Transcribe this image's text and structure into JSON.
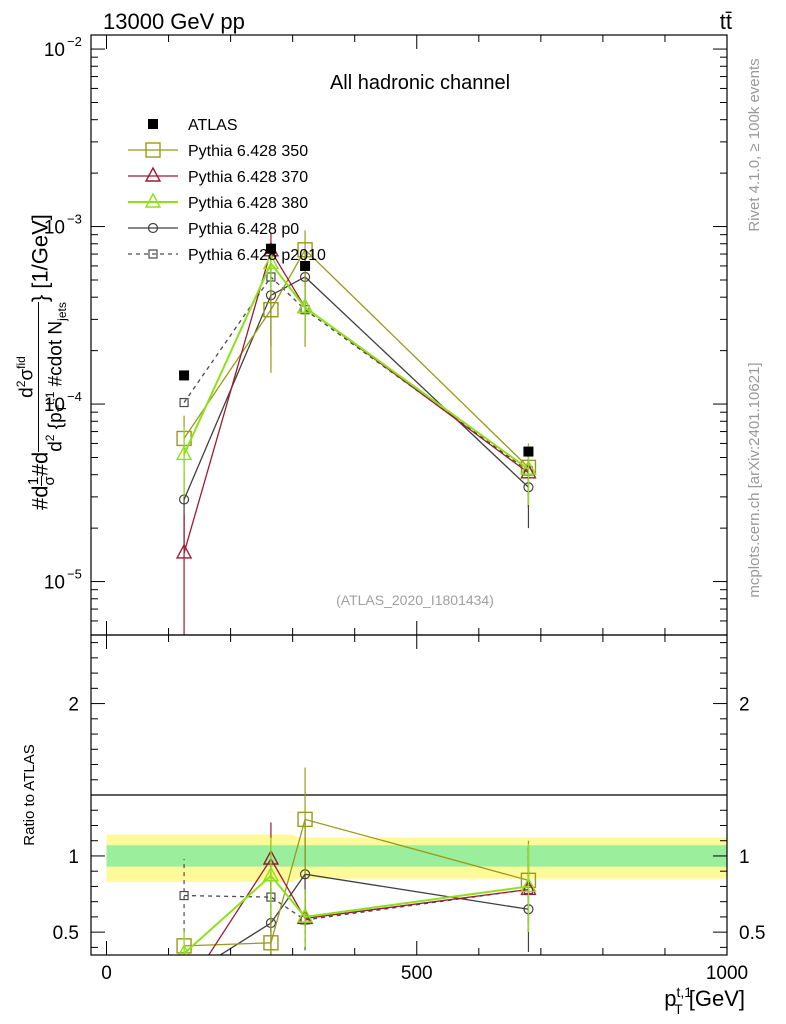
{
  "header": {
    "left": "13000 GeV pp",
    "right": "tt̄"
  },
  "side": {
    "rivet": "Rivet 4.1.0, ≥ 100k events",
    "source": "mcplots.cern.ch [arXiv:2401.10621]"
  },
  "chart_data": [
    {
      "type": "line",
      "panel": "main",
      "title": "All hadronic channel",
      "watermark": "(ATLAS_2020_I1801434)",
      "ylabel": "#d\\frac{1}{\\sigma}#d\\frac{d^{2}\\sigma^{fid}}{d^{2} {p_{T}^{t,1} #cdot N_{jets}} [1/GeV]",
      "ylabel_parts": {
        "a": "#d",
        "b": "1",
        "c": "σ",
        "d": "#d",
        "e": "d",
        "f": "2",
        "g": "σ",
        "h": "fid",
        "i": "d",
        "j": "2",
        "k": " {p",
        "l": "T",
        "m": "t,1",
        "n": " #cdot N",
        "o": "jets",
        "p": "} [1/GeV]"
      },
      "yscale": "log",
      "ylim": [
        5e-06,
        0.012
      ],
      "yticks": [
        {
          "value": 1e-05,
          "base": "10",
          "exp": "−5"
        },
        {
          "value": 0.0001,
          "base": "10",
          "exp": "−4"
        },
        {
          "value": 0.001,
          "base": "10",
          "exp": "−3"
        },
        {
          "value": 0.01,
          "base": "10",
          "exp": "−2"
        }
      ],
      "x": [
        125,
        265,
        320,
        680
      ],
      "series": [
        {
          "name": "ATLAS",
          "color": "#000000",
          "marker": "square-filled",
          "line": "none",
          "values": [
            0.000145,
            0.00075,
            0.0006,
            5.4e-05
          ]
        },
        {
          "name": "Pythia 6.428 350",
          "color": "#999a18",
          "marker": "square-open",
          "line": "solid",
          "values": [
            6.4e-05,
            0.00034,
            0.00074,
            4.4e-05
          ],
          "err_low": [
            4.2e-05,
            0.00015,
            0.00021,
            2.6e-05
          ],
          "err_high": [
            8.6e-05,
            0.00053,
            0.00095,
            6e-05
          ]
        },
        {
          "name": "Pythia 6.428 370",
          "color": "#9b1c33",
          "marker": "triangle-open",
          "line": "solid",
          "values": [
            1.45e-05,
            0.00073,
            0.00035,
            4.1e-05
          ],
          "err_low": [
            5e-06,
            0.00055,
            0.00024,
            2.6e-05
          ],
          "err_high": [
            2.4e-05,
            0.00092,
            0.00046,
            5.6e-05
          ]
        },
        {
          "name": "Pythia 6.428 380",
          "color": "#8ee11a",
          "marker": "triangle-open",
          "line": "solid",
          "values": [
            5.2e-05,
            0.00062,
            0.00035,
            4.3e-05
          ],
          "err_low": [
            3e-05,
            0.00044,
            0.00024,
            2.7e-05
          ],
          "err_high": [
            7.4e-05,
            0.0008,
            0.00046,
            5.9e-05
          ]
        },
        {
          "name": "Pythia 6.428 p0",
          "color": "#404040",
          "marker": "circle-open",
          "line": "solid",
          "values": [
            2.9e-05,
            0.00041,
            0.00052,
            3.4e-05
          ],
          "err_low": [
            1.6e-05,
            0.00021,
            0.00032,
            2e-05
          ],
          "err_high": [
            4.2e-05,
            0.00061,
            0.00072,
            4.8e-05
          ]
        },
        {
          "name": "Pythia 6.428 p2010",
          "color": "#4a4a4a",
          "marker": "square-open-small",
          "line": "dashed",
          "values": [
            0.000102,
            0.00052,
            0.00034,
            4.2e-05
          ]
        }
      ]
    },
    {
      "type": "line",
      "panel": "ratio",
      "ylabel": "Ratio to ATLAS",
      "xlabel": "p_T^{t,1} [GeV]",
      "xlabel_parts": {
        "main": "p",
        "sub": "T",
        "sup": "t,1",
        "unit": " [GeV]"
      },
      "xlim": [
        -25,
        1000
      ],
      "xticks": [
        0,
        500,
        1000
      ],
      "xtick_labels": [
        "0",
        "500",
        "1000"
      ],
      "ylim": [
        0.35,
        2.45
      ],
      "yticks": [
        0.5,
        1,
        2
      ],
      "ytick_labels": [
        "0.5",
        "1",
        "2"
      ],
      "band_inner": {
        "x": [
          0,
          300,
          310,
          1000
        ],
        "lo": [
          0.93,
          0.93,
          0.93,
          0.93
        ],
        "hi": [
          1.07,
          1.07,
          1.07,
          1.07
        ]
      },
      "band_outer": {
        "x": [
          0,
          300,
          310,
          1000
        ],
        "lo": [
          0.83,
          0.83,
          0.85,
          0.85
        ],
        "hi": [
          1.14,
          1.14,
          1.12,
          1.12
        ]
      },
      "x": [
        125,
        265,
        320,
        680
      ],
      "series": [
        {
          "name": "Pythia 6.428 350",
          "values": [
            0.41,
            0.43,
            1.24,
            0.84
          ],
          "err_low": [
            0.3,
            0.2,
            0.88,
            0.58
          ],
          "err_high": [
            0.52,
            0.71,
            1.58,
            1.1
          ]
        },
        {
          "name": "Pythia 6.428 370",
          "values": [
            0.1,
            0.98,
            0.59,
            0.78
          ],
          "err_low": [
            0.05,
            0.74,
            0.4,
            0.5
          ],
          "err_high": [
            0.16,
            1.22,
            0.78,
            1.06
          ]
        },
        {
          "name": "Pythia 6.428 380",
          "values": [
            0.36,
            0.87,
            0.6,
            0.8
          ],
          "err_low": [
            0.22,
            0.6,
            0.4,
            0.5
          ],
          "err_high": [
            0.5,
            1.12,
            0.78,
            1.08
          ]
        },
        {
          "name": "Pythia 6.428 p0",
          "values": [
            0.2,
            0.56,
            0.88,
            0.65
          ],
          "err_low": [
            0.11,
            0.28,
            0.53,
            0.37
          ],
          "err_high": [
            0.29,
            0.84,
            1.22,
            0.93
          ]
        },
        {
          "name": "Pythia 6.428 p2010",
          "values": [
            0.74,
            0.73,
            0.58,
            0.78
          ],
          "err_low": [
            0.5,
            0.5,
            0.38,
            0.5
          ],
          "err_high": [
            0.98,
            0.96,
            0.78,
            1.06
          ]
        }
      ]
    }
  ]
}
